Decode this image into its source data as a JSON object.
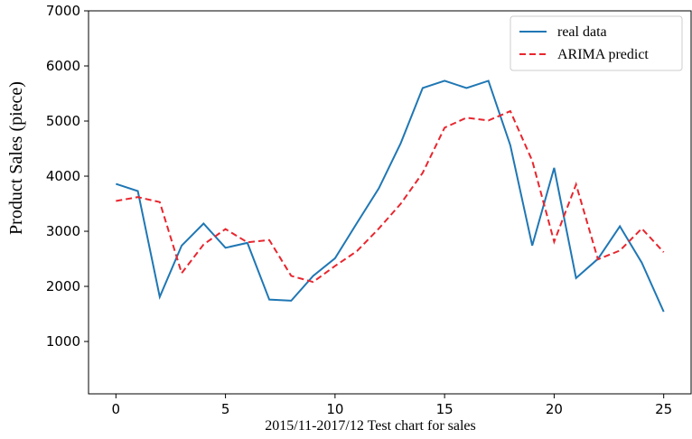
{
  "chart_data": {
    "type": "line",
    "x_label": "2015/11-2017/12 Test chart for sales",
    "y_label": "Product Sales (piece)",
    "x": [
      0,
      1,
      2,
      3,
      4,
      5,
      6,
      7,
      8,
      9,
      10,
      11,
      12,
      13,
      14,
      15,
      16,
      17,
      18,
      19,
      20,
      21,
      22,
      23,
      24,
      25
    ],
    "series": [
      {
        "name": "real data",
        "color": "#1f77b4",
        "dash": "solid",
        "values": [
          3860,
          3730,
          1810,
          2740,
          3140,
          2700,
          2790,
          1760,
          1740,
          2190,
          2510,
          3150,
          3780,
          4600,
          5600,
          5730,
          5600,
          5730,
          4560,
          2740,
          4150,
          2150,
          2500,
          3090,
          2430,
          1540
        ]
      },
      {
        "name": "ARIMA predict",
        "color": "#e8262e",
        "dash": "dashed",
        "values": [
          3550,
          3620,
          3530,
          2240,
          2760,
          3040,
          2800,
          2840,
          2190,
          2080,
          2370,
          2640,
          3050,
          3500,
          4060,
          4880,
          5060,
          5010,
          5180,
          4280,
          2810,
          3850,
          2490,
          2650,
          3050,
          2620
        ]
      }
    ],
    "xlim": [
      -1.25,
      26.25
    ],
    "ylim": [
      50,
      7000
    ],
    "xticks": [
      0,
      5,
      10,
      15,
      20,
      25
    ],
    "yticks": [
      1000,
      2000,
      3000,
      4000,
      5000,
      6000,
      7000
    ],
    "legend": "upper right"
  }
}
